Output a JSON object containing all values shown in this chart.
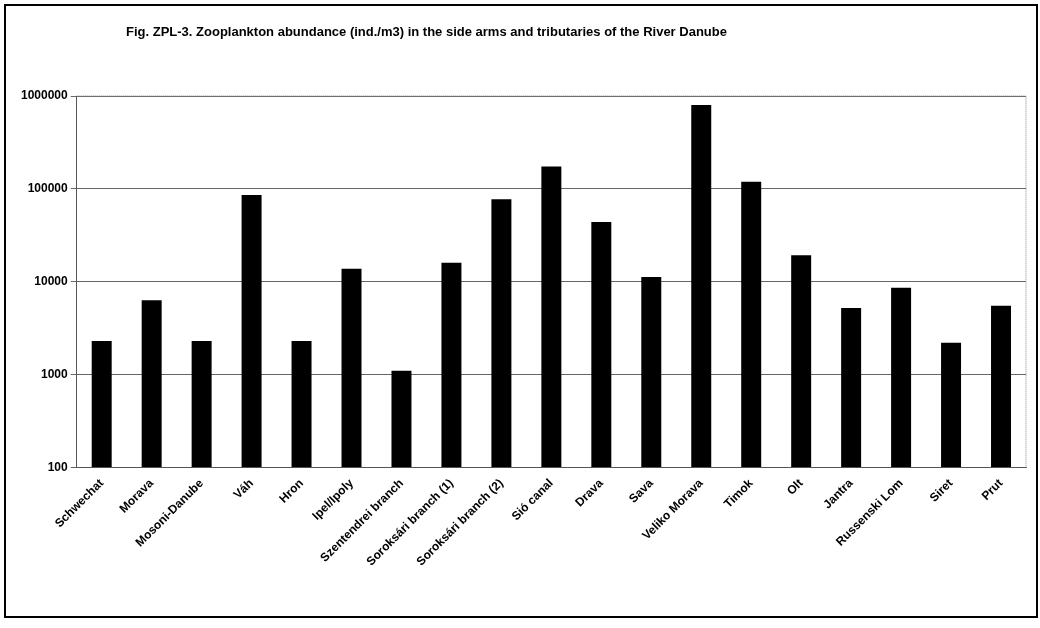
{
  "chart_data": {
    "type": "bar",
    "title": "Fig. ZPL-3. Zooplankton abundance (ind./m3) in the side arms and tributaries of the River Danube",
    "categories": [
      "Schwechat",
      "Morava",
      "Mosoni-Danube",
      "Váh",
      "Hron",
      "Ipel/Ipoly",
      "Szentendrei branch",
      "Soroksári branch (1)",
      "Soroksári branch (2)",
      "Sió canal",
      "Drava",
      "Sava",
      "Veliko Morava",
      "Timok",
      "Olt",
      "Jantra",
      "Russenski Lom",
      "Siret",
      "Prut"
    ],
    "values": [
      2300,
      6300,
      2300,
      86000,
      2300,
      13800,
      1100,
      16000,
      77000,
      174000,
      44000,
      11200,
      800000,
      119000,
      19300,
      5200,
      8600,
      2200,
      5500
    ],
    "color": "#000000",
    "log": true,
    "ylim": [
      100,
      1000000
    ],
    "yticks": [
      100,
      1000,
      10000,
      100000,
      1000000
    ],
    "grid": "y",
    "legend": false
  }
}
